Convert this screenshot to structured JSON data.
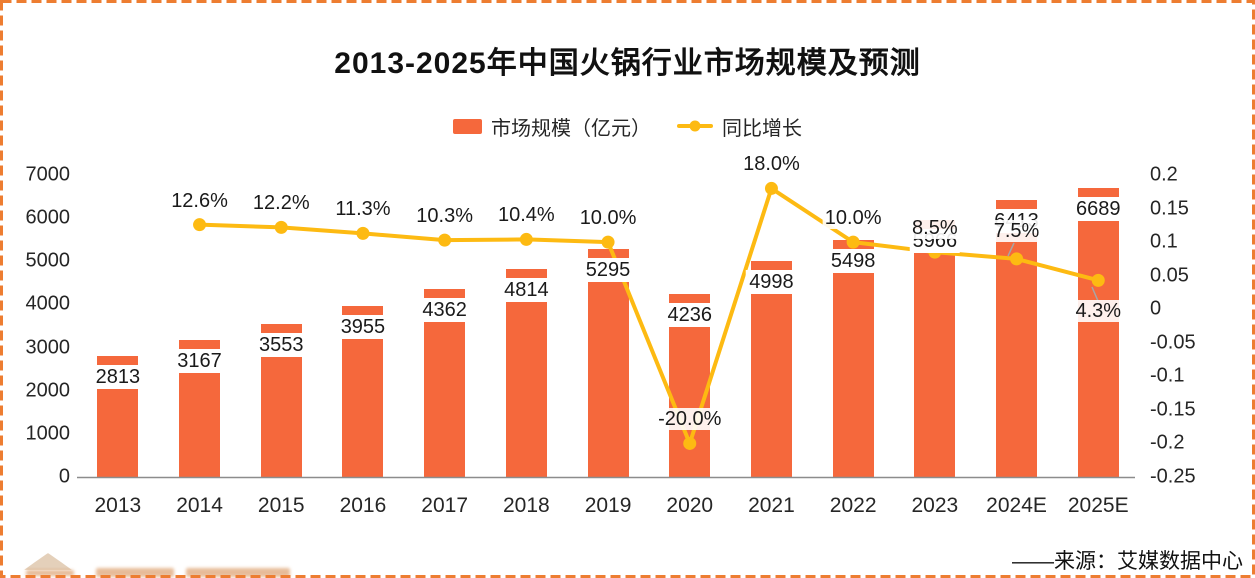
{
  "title": "2013-2025年中国火锅行业市场规模及预测",
  "legend": {
    "bar_label": "市场规模（亿元）",
    "line_label": "同比增长"
  },
  "source": "——来源：艾媒数据中心",
  "colors": {
    "bar": "#F5683C",
    "line": "#FDBA12",
    "marker": "#FDBA12",
    "text": "#262626",
    "axis_line": "#8C8C8C",
    "leader_line": "#A6A6A6",
    "border": "#ED7D31"
  },
  "chart_data": {
    "type": "bar",
    "subtype": "bar+line combo, dual axis",
    "title": "2013-2025年中国火锅行业市场规模及预测",
    "xlabel": "",
    "ylabel": "",
    "categories": [
      "2013",
      "2014",
      "2015",
      "2016",
      "2017",
      "2018",
      "2019",
      "2020",
      "2021",
      "2022",
      "2023",
      "2024E",
      "2025E"
    ],
    "series": [
      {
        "name": "市场规模（亿元）",
        "type": "bar",
        "axis": "left",
        "values": [
          2813,
          3167,
          3553,
          3955,
          4362,
          4814,
          5295,
          4236,
          4998,
          5498,
          5966,
          6413,
          6689
        ],
        "labels": [
          "2813",
          "3167",
          "3553",
          "3955",
          "4362",
          "4814",
          "5295",
          "4236",
          "4998",
          "5498",
          "5966",
          "6413",
          "6689"
        ]
      },
      {
        "name": "同比增长",
        "type": "line",
        "axis": "right",
        "values": [
          null,
          0.126,
          0.122,
          0.113,
          0.103,
          0.104,
          0.1,
          -0.2,
          0.18,
          0.1,
          0.085,
          0.075,
          0.043
        ],
        "labels": [
          null,
          "12.6%",
          "12.2%",
          "11.3%",
          "10.3%",
          "10.4%",
          "10.0%",
          "-20.0%",
          "18.0%",
          "10.0%",
          "8.5%",
          "7.5%",
          "4.3%"
        ]
      }
    ],
    "left_axis": {
      "min": 0,
      "max": 7000,
      "tick_step": 1000,
      "ticks": [
        "7000",
        "6000",
        "5000",
        "4000",
        "3000",
        "2000",
        "1000",
        "0"
      ]
    },
    "right_axis": {
      "min": -0.25,
      "max": 0.2,
      "tick_step": 0.05,
      "ticks": [
        "0.2",
        "0.15",
        "0.1",
        "0.05",
        "0",
        "-0.05",
        "-0.1",
        "-0.15",
        "-0.2",
        "-0.25"
      ]
    },
    "grid": false,
    "legend_position": "top-center"
  }
}
